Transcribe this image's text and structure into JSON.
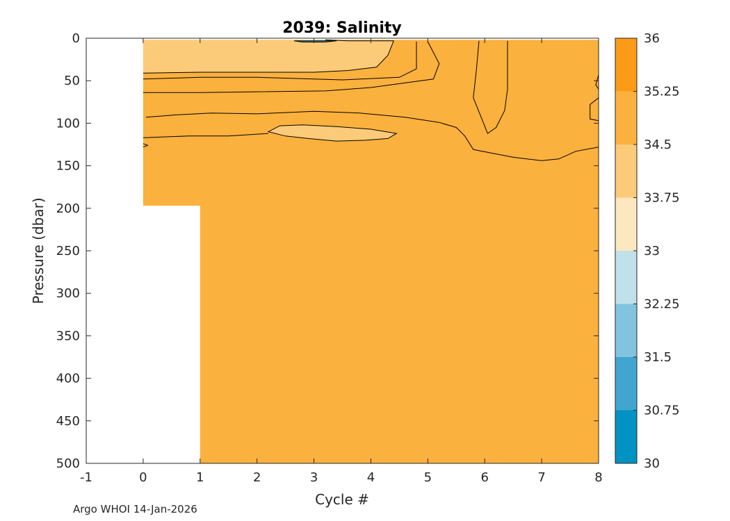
{
  "chart_data": {
    "type": "contourf",
    "title": "2039:  Salinity",
    "xlabel": "Cycle #",
    "ylabel": "Pressure (dbar)",
    "xlim": [
      -1,
      8
    ],
    "ylim": [
      0,
      500
    ],
    "y_reversed": true,
    "x_ticks": [
      "-1",
      "0",
      "1",
      "2",
      "3",
      "4",
      "5",
      "6",
      "7",
      "8"
    ],
    "y_ticks": [
      "0",
      "50",
      "100",
      "150",
      "200",
      "250",
      "300",
      "350",
      "400",
      "450",
      "500"
    ],
    "x_tick_values": [
      -1,
      0,
      1,
      2,
      3,
      4,
      5,
      6,
      7,
      8
    ],
    "y_tick_values": [
      0,
      50,
      100,
      150,
      200,
      250,
      300,
      350,
      400,
      450,
      500
    ],
    "data_extent": [
      {
        "cycles": [
          0,
          1
        ],
        "pressure": [
          0,
          197
        ]
      },
      {
        "cycles": [
          1,
          8
        ],
        "pressure": [
          0,
          500
        ]
      }
    ],
    "colorbar": {
      "levels": [
        30,
        30.75,
        31.5,
        32.25,
        33,
        33.75,
        34.5,
        35.25,
        36
      ],
      "tick_labels": [
        "30",
        "30.75",
        "31.5",
        "32.25",
        "33",
        "33.75",
        "34.5",
        "35.25",
        "36"
      ],
      "colors": [
        "#0092c2",
        "#41a6cf",
        "#82c4df",
        "#c0e0ea",
        "#fde7bf",
        "#fbcb7a",
        "#fbb13d",
        "#fb9b17"
      ]
    },
    "regions": [
      {
        "range": [
          33.75,
          34.5
        ],
        "description": "surface layer, 0 to about 45 dbar, cycles 0 to 4.4"
      },
      {
        "range": [
          33.75,
          34.5
        ],
        "description": "lens near 100 to 120 dbar, cycles 2.4 to 4.5"
      },
      {
        "range": [
          34.5,
          35.25
        ],
        "description": "rest of section"
      }
    ]
  },
  "footer": "Argo WHOI 14-Jan-2026",
  "colors": {
    "background": "#ffffff",
    "axis": "#262626",
    "contour_line": "#000000"
  }
}
